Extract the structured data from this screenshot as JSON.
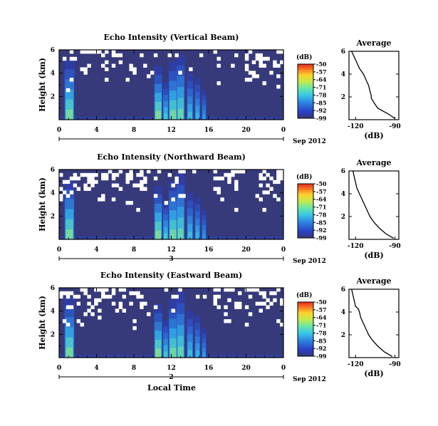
{
  "xlabel_bottom": "Local Time",
  "date_label": "Sep 2012",
  "colorbar": {
    "unit": "(dB)",
    "tick_labels": [
      "-50",
      "-57",
      "-64",
      "-71",
      "-78",
      "-85",
      "-92",
      "-99"
    ],
    "min": -99,
    "max": -50
  },
  "chart_data": [
    {
      "type": "heatmap",
      "title": "Echo Intensity (Vertical Beam)",
      "ylabel": "Height (km)",
      "x_ticks": [
        "0",
        "4",
        "8",
        "12",
        "16",
        "20",
        "0"
      ],
      "y_ticks": [
        "2",
        "4",
        "6"
      ],
      "day_marker": "",
      "xlim": [
        0,
        24
      ],
      "ylim": [
        0,
        6
      ],
      "gap_level": 0.15,
      "profile": {
        "title": "Average",
        "xlabel": "(dB)",
        "x_ticks": [
          "-120",
          "-90"
        ],
        "y_ticks": [
          "2",
          "4",
          "6"
        ],
        "xlim": [
          -125,
          -87
        ],
        "ylim": [
          0,
          6
        ],
        "height_km": [
          0.1,
          0.5,
          1.0,
          1.5,
          1.9,
          2.1,
          2.5,
          3.0,
          3.5,
          4.0,
          4.5,
          5.0,
          5.5,
          6.0
        ],
        "db": [
          -90,
          -95,
          -103,
          -106,
          -108,
          -108,
          -109,
          -110,
          -112,
          -114,
          -117,
          -119,
          -121,
          -123
        ]
      }
    },
    {
      "type": "heatmap",
      "title": "Echo Intensity (Northward Beam)",
      "ylabel": "Height (km)",
      "x_ticks": [
        "0",
        "4",
        "8",
        "12",
        "16",
        "20",
        "0"
      ],
      "y_ticks": [
        "2",
        "4",
        "6"
      ],
      "day_marker": "3",
      "xlim": [
        0,
        24
      ],
      "ylim": [
        0,
        6
      ],
      "gap_level": 0.3,
      "profile": {
        "title": "Average",
        "xlabel": "(dB)",
        "x_ticks": [
          "-120",
          "-90"
        ],
        "y_ticks": [
          "2",
          "4",
          "6"
        ],
        "xlim": [
          -125,
          -87
        ],
        "ylim": [
          0,
          6
        ],
        "height_km": [
          0.1,
          0.5,
          1.0,
          1.5,
          2.0,
          2.5,
          3.0,
          3.5,
          4.0,
          4.5,
          5.0,
          5.5,
          6.0
        ],
        "db": [
          -91,
          -97,
          -102,
          -106,
          -109,
          -111,
          -113,
          -115,
          -117,
          -119,
          -120,
          -121,
          -122
        ]
      }
    },
    {
      "type": "heatmap",
      "title": "Echo Intensity (Eastward Beam)",
      "ylabel": "Height (km)",
      "x_ticks": [
        "0",
        "4",
        "8",
        "12",
        "16",
        "20",
        "0"
      ],
      "y_ticks": [
        "2",
        "4",
        "6"
      ],
      "day_marker": "2",
      "xlim": [
        0,
        24
      ],
      "ylim": [
        0,
        6
      ],
      "gap_level": 0.28,
      "profile": {
        "title": "Average",
        "xlabel": "(dB)",
        "x_ticks": [
          "-120",
          "-90"
        ],
        "y_ticks": [
          "2",
          "4",
          "6"
        ],
        "xlim": [
          -125,
          -87
        ],
        "ylim": [
          0,
          6
        ],
        "height_km": [
          0.1,
          0.5,
          1.0,
          1.5,
          2.0,
          2.5,
          3.0,
          3.5,
          4.0,
          4.3,
          4.5,
          5.0,
          5.5,
          6.0
        ],
        "db": [
          -92,
          -98,
          -103,
          -107,
          -110,
          -112,
          -114,
          -116,
          -117,
          -118,
          -120,
          -121,
          -122,
          -123
        ]
      }
    }
  ]
}
